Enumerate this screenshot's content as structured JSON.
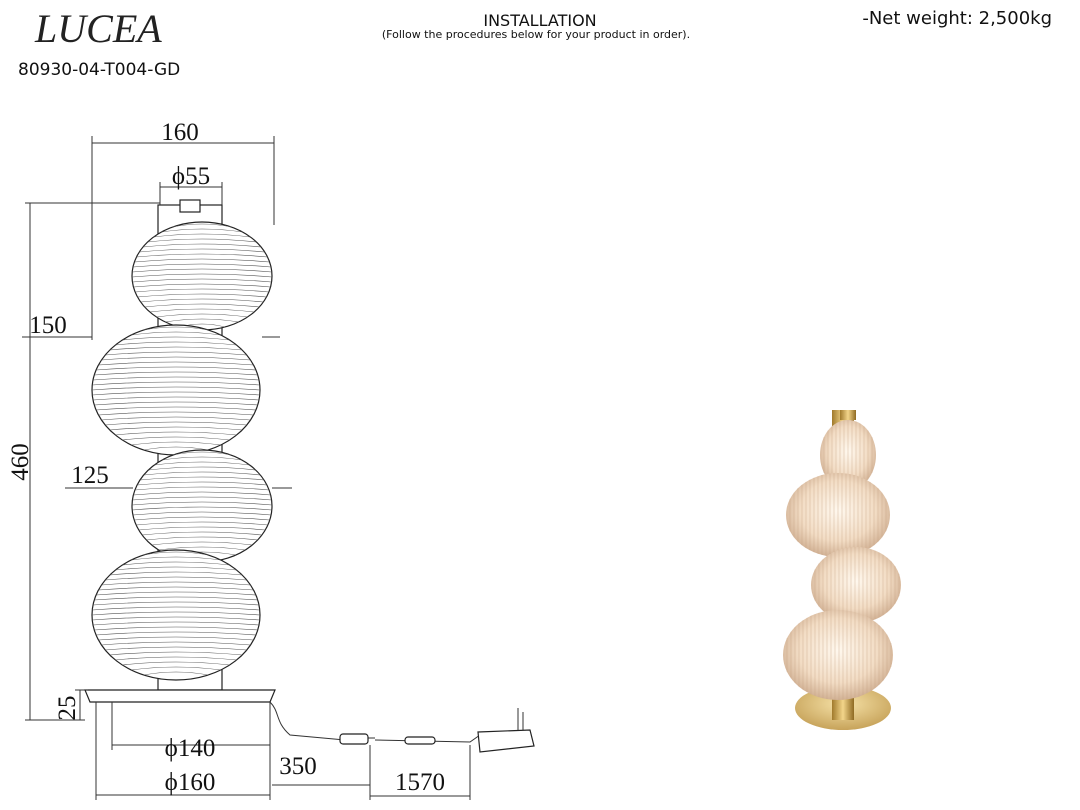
{
  "header": {
    "brand": "LUCEA",
    "model": "80930-04-T004-GD",
    "title": "INSTALLATION",
    "subtitle": "(Follow the procedures below for your product in order).",
    "net_weight": "-Net weight: 2,500kg"
  },
  "dimensions": {
    "width": "160",
    "top_diameter": "ϕ55",
    "large_shade": "150",
    "height": "460",
    "small_shade": "125",
    "base_height": "25",
    "base_inner": "ϕ140",
    "base_outer": "ϕ160",
    "cord_to_switch": "350",
    "cord_length": "1570"
  }
}
